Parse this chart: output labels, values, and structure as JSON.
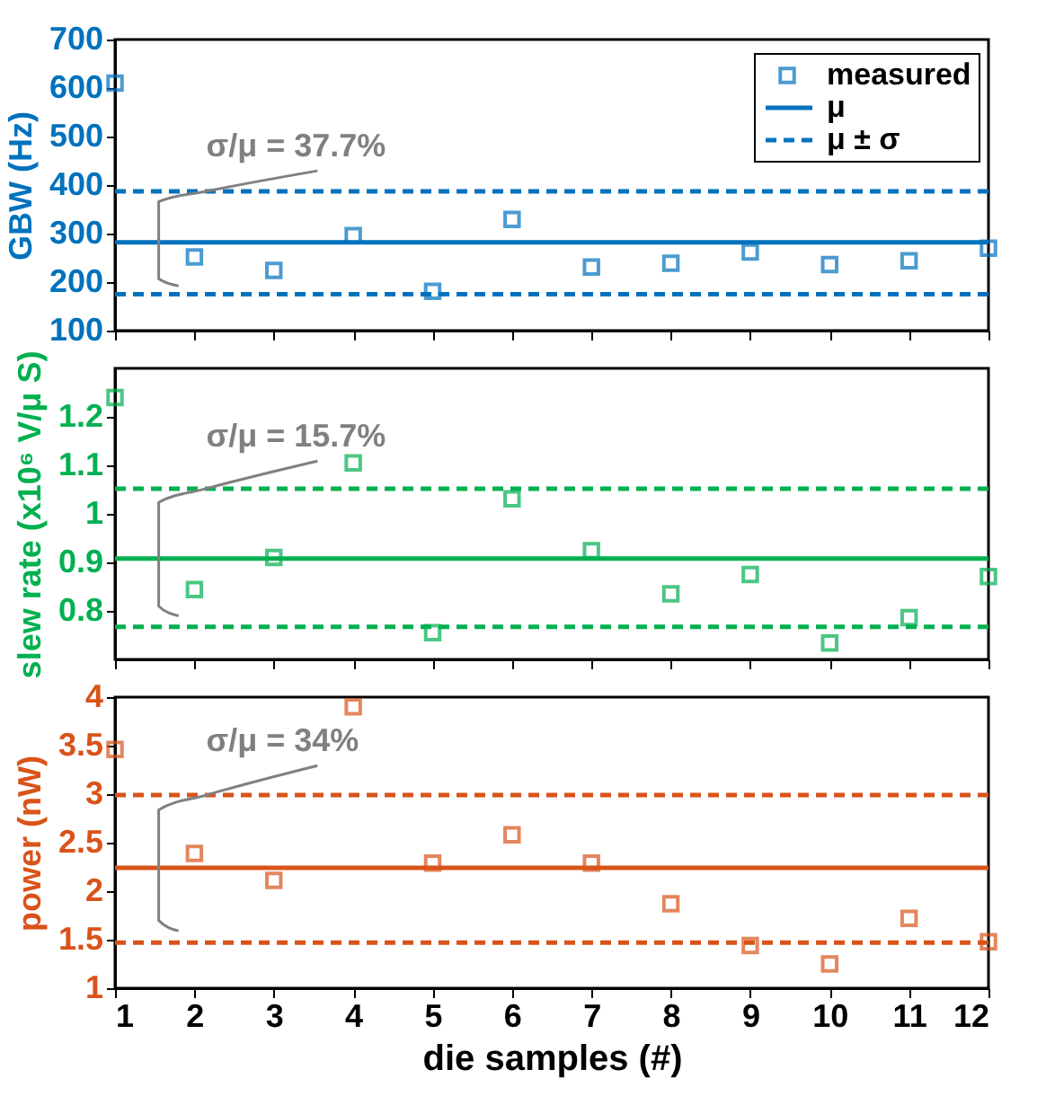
{
  "chart_data": [
    {
      "type": "scatter",
      "ylabel": "GBW (Hz)",
      "x": [
        1,
        2,
        3,
        4,
        5,
        6,
        7,
        8,
        9,
        10,
        11,
        12
      ],
      "xlim": [
        1,
        12
      ],
      "xticks": [
        1,
        2,
        3,
        4,
        5,
        6,
        7,
        8,
        9,
        10,
        11,
        12
      ],
      "ylim": [
        100,
        700
      ],
      "yticks": [
        100,
        200,
        300,
        400,
        500,
        600,
        700
      ],
      "tick_labels": "y",
      "marker": "square",
      "legend": "top right",
      "grid": false,
      "series": [
        {
          "name": "measured",
          "color": "#0072bd",
          "values": [
            610,
            252,
            224,
            296,
            181,
            329,
            231,
            239,
            262,
            236,
            244,
            270
          ]
        }
      ],
      "ref_lines": [
        {
          "axis": "y",
          "value": 282,
          "label": "μ",
          "color": "#0072bd",
          "line_style": "solid"
        },
        {
          "axis": "y",
          "value": 387,
          "label": "μ ± σ",
          "color": "#0072bd",
          "line_style": "dashed"
        },
        {
          "axis": "y",
          "value": 175,
          "color": "#0072bd",
          "line_style": "dashed"
        }
      ],
      "annotations": [
        "σ/μ = 37.7%"
      ]
    },
    {
      "type": "scatter",
      "ylabel": "slew rate (x10⁶ V/μ S)",
      "x": [
        1,
        2,
        3,
        4,
        5,
        6,
        7,
        8,
        9,
        10,
        11,
        12
      ],
      "xlim": [
        1,
        12
      ],
      "xticks": [
        1,
        2,
        3,
        4,
        5,
        6,
        7,
        8,
        9,
        10,
        11,
        12
      ],
      "ylim": [
        0.7,
        1.3
      ],
      "yticks": [
        0.8,
        0.9,
        1,
        1.1,
        1.2
      ],
      "tick_labels": "y",
      "marker": "square",
      "grid": false,
      "series": [
        {
          "color": "#00b050",
          "values": [
            1.24,
            0.844,
            0.91,
            1.105,
            0.755,
            1.031,
            0.924,
            0.835,
            0.875,
            0.734,
            0.786,
            0.871
          ]
        }
      ],
      "ref_lines": [
        {
          "axis": "y",
          "value": 0.908,
          "color": "#00b050",
          "line_style": "solid"
        },
        {
          "axis": "y",
          "value": 1.052,
          "color": "#00b050",
          "line_style": "dashed"
        },
        {
          "axis": "y",
          "value": 0.767,
          "color": "#00b050",
          "line_style": "dashed"
        }
      ],
      "annotations": [
        "σ/μ = 15.7%"
      ]
    },
    {
      "type": "scatter",
      "ylabel": "power (nW)",
      "xlabel": "die samples (#)",
      "x": [
        1,
        2,
        3,
        4,
        5,
        6,
        7,
        8,
        9,
        10,
        11,
        12
      ],
      "xlim": [
        1,
        12
      ],
      "xticks": [
        1,
        2,
        3,
        4,
        5,
        6,
        7,
        8,
        9,
        10,
        11,
        12
      ],
      "ylim": [
        1,
        4
      ],
      "yticks": [
        1,
        1.5,
        2,
        2.5,
        3,
        3.5,
        4
      ],
      "marker": "square",
      "grid": false,
      "series": [
        {
          "color": "#d95319",
          "values": [
            3.46,
            2.39,
            2.11,
            3.9,
            2.29,
            2.58,
            2.29,
            1.87,
            1.44,
            1.25,
            1.72,
            1.48
          ]
        }
      ],
      "ref_lines": [
        {
          "axis": "y",
          "value": 2.24,
          "color": "#d95319",
          "line_style": "solid"
        },
        {
          "axis": "y",
          "value": 2.99,
          "color": "#d95319",
          "line_style": "dashed"
        },
        {
          "axis": "y",
          "value": 1.47,
          "color": "#d95319",
          "line_style": "dashed"
        }
      ],
      "annotations": [
        "σ/μ = 34%"
      ]
    }
  ]
}
